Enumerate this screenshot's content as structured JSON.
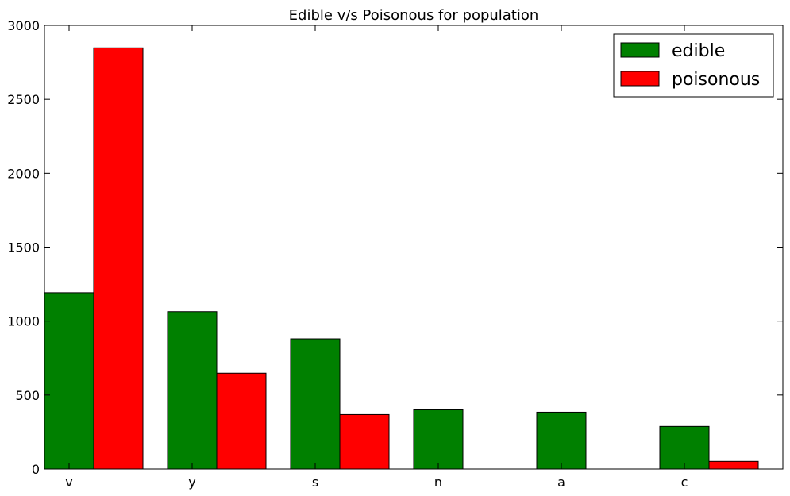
{
  "chart_data": {
    "type": "bar",
    "title": "Edible v/s Poisonous for population",
    "xlabel": "",
    "ylabel": "",
    "categories": [
      "v",
      "y",
      "s",
      "n",
      "a",
      "c"
    ],
    "series": [
      {
        "name": "edible",
        "color": "#008000",
        "values": [
          1192,
          1064,
          880,
          400,
          384,
          288
        ]
      },
      {
        "name": "poisonous",
        "color": "#ff0000",
        "values": [
          2848,
          648,
          368,
          0,
          0,
          52
        ]
      }
    ],
    "ylim": [
      0,
      3000
    ],
    "yticks": [
      0,
      500,
      1000,
      1500,
      2000,
      2500,
      3000
    ],
    "grid": false,
    "legend_position": "top-right"
  }
}
